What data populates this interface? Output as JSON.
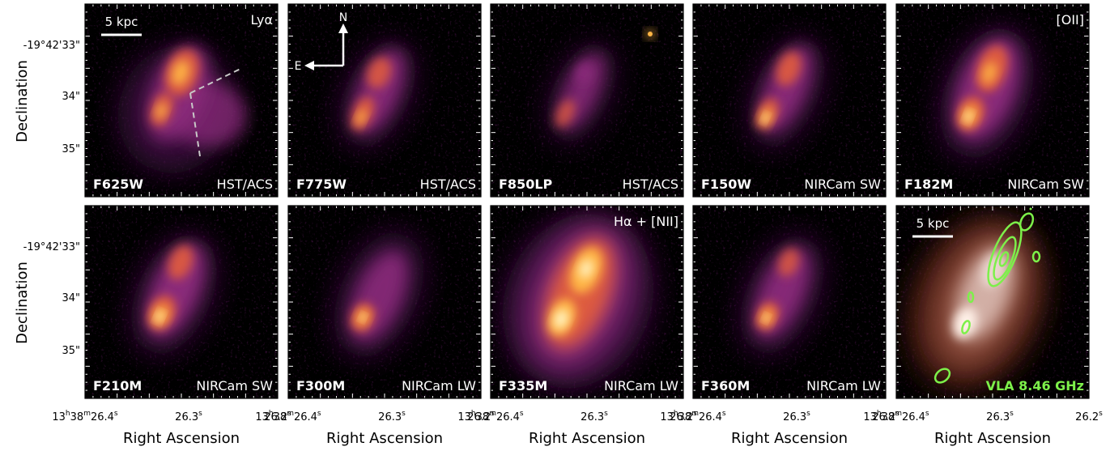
{
  "figure": {
    "x_axis_label": "Right Ascension",
    "y_axis_label": "Declination",
    "ra_ticks": [
      {
        "h": "13",
        "m": "38",
        "s": "26.4"
      },
      {
        "s": "26.3"
      },
      {
        "s": "26.2"
      }
    ],
    "dec_ticks": [
      "-19°42'33\"",
      "34\"",
      "35\""
    ],
    "scale_bar_label": "5 kpc",
    "compass": {
      "north": "N",
      "east": "E"
    }
  },
  "panels": [
    {
      "filter": "F625W",
      "instrument": "HST/ACS",
      "line": "Lyα",
      "galaxy": "g625",
      "extras": [
        "scalebar",
        "slit"
      ]
    },
    {
      "filter": "F775W",
      "instrument": "HST/ACS",
      "line": "",
      "galaxy": "g775",
      "extras": [
        "compass"
      ]
    },
    {
      "filter": "F850LP",
      "instrument": "HST/ACS",
      "line": "",
      "galaxy": "g850",
      "extras": [
        "star"
      ]
    },
    {
      "filter": "F150W",
      "instrument": "NIRCam SW",
      "line": "",
      "galaxy": "g150",
      "extras": []
    },
    {
      "filter": "F182M",
      "instrument": "NIRCam SW",
      "line": "[OII]",
      "galaxy": "g182",
      "extras": []
    },
    {
      "filter": "F210M",
      "instrument": "NIRCam SW",
      "line": "",
      "galaxy": "g210",
      "extras": []
    },
    {
      "filter": "F300M",
      "instrument": "NIRCam LW",
      "line": "",
      "galaxy": "g300",
      "extras": []
    },
    {
      "filter": "F335M",
      "instrument": "NIRCam LW",
      "line": "Hα + [NII]",
      "galaxy": "g335",
      "extras": []
    },
    {
      "filter": "F360M",
      "instrument": "NIRCam LW",
      "line": "",
      "galaxy": "g360",
      "extras": []
    },
    {
      "filter": "",
      "instrument": "",
      "line": "",
      "galaxy": "rgb",
      "extras": [
        "scalebar",
        "contours"
      ],
      "radio_label": "VLA 8.46 GHz"
    }
  ],
  "colors": {
    "background": "#000000",
    "core": "#fff6c8",
    "inner": "#ffb545",
    "mid": "#dd5a40",
    "outer": "#8a2a7a",
    "faint": "#3a0b3c",
    "contour": "#7df04a"
  }
}
